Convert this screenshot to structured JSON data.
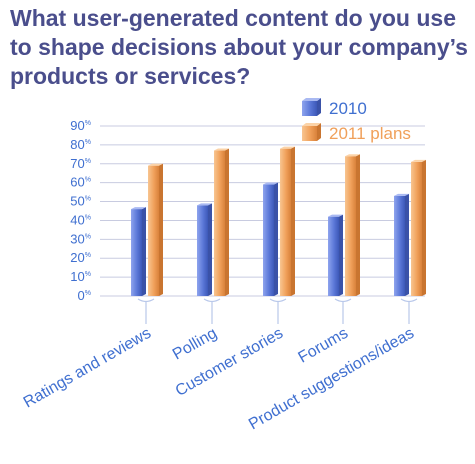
{
  "title": "What user-generated content do you use to shape decisions about your company’s products or services?",
  "colors": {
    "title": "#4a4e8c",
    "series_2010": "#5b78d8",
    "series_2011": "#f0a05a",
    "axis_text": "#3f6fd0",
    "grid": "#c8cbe0"
  },
  "chart_data": {
    "type": "bar",
    "categories": [
      "Ratings and reviews",
      "Polling",
      "Customer stories",
      "Forums",
      "Product suggestions/ideas"
    ],
    "series": [
      {
        "name": "2010",
        "values": [
          46,
          48,
          59,
          42,
          53
        ]
      },
      {
        "name": "2011 plans",
        "values": [
          69,
          77,
          78,
          74,
          71
        ]
      }
    ],
    "y_ticks": [
      "0%",
      "10%",
      "20%",
      "30%",
      "40%",
      "50%",
      "60%",
      "70%",
      "80%",
      "90%"
    ],
    "ylim": [
      0,
      90
    ],
    "grid": true,
    "legend_position": "top-right"
  }
}
